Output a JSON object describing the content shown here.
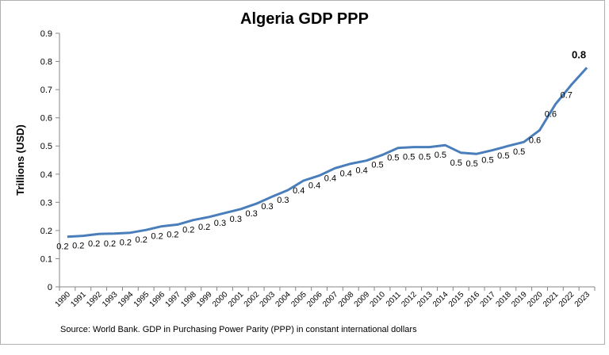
{
  "chart_data": {
    "type": "line",
    "title": "Algeria GDP PPP",
    "y_label": "Trillions (USD)",
    "source": "Source: World Bank.  GDP  in  Purchasing Power Parity (PPP)  in constant international dollars",
    "categories": [
      "1990",
      "1991",
      "1992",
      "1993",
      "1994",
      "1995",
      "1996",
      "1997",
      "1998",
      "1999",
      "2000",
      "2001",
      "2002",
      "2003",
      "2004",
      "2005",
      "2006",
      "2007",
      "2008",
      "2009",
      "2010",
      "2011",
      "2012",
      "2013",
      "2014",
      "2015",
      "2016",
      "2017",
      "2018",
      "2019",
      "2020",
      "2021",
      "2022",
      "2023"
    ],
    "values": [
      0.178,
      0.181,
      0.188,
      0.189,
      0.192,
      0.202,
      0.215,
      0.221,
      0.237,
      0.248,
      0.262,
      0.276,
      0.295,
      0.32,
      0.343,
      0.377,
      0.395,
      0.421,
      0.437,
      0.448,
      0.468,
      0.493,
      0.496,
      0.496,
      0.503,
      0.476,
      0.472,
      0.485,
      0.5,
      0.514,
      0.556,
      0.648,
      0.716,
      0.778
    ],
    "value_labels": [
      "0.2",
      "0.2",
      "0.2",
      "0.2",
      "0.2",
      "0.2",
      "0.2",
      "0.2",
      "0.2",
      "0.2",
      "0.3",
      "0.3",
      "0.3",
      "0.3",
      "0.3",
      "0.4",
      "0.4",
      "0.4",
      "0.4",
      "0.4",
      "0.5",
      "0.5",
      "0.5",
      "0.5",
      "0.5",
      "0.5",
      "0.5",
      "0.5",
      "0.5",
      "0.5",
      "0.6",
      "0.6",
      "0.7",
      "0.8"
    ],
    "color": "#4a7ebb",
    "ylim": [
      0,
      0.9
    ],
    "yticks": [
      0,
      0.1,
      0.2,
      0.3,
      0.4,
      0.5,
      0.6,
      0.7,
      0.8,
      0.9
    ],
    "grid": false
  }
}
